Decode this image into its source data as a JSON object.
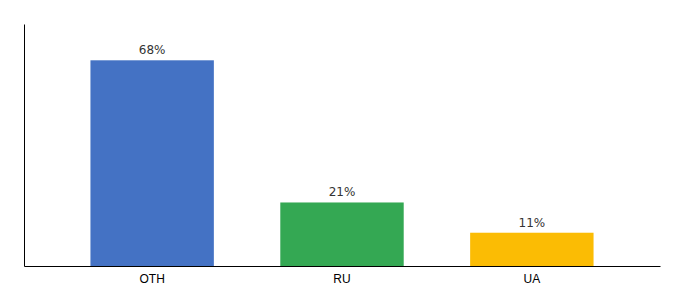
{
  "chart_data": {
    "type": "bar",
    "categories": [
      "OTH",
      "RU",
      "UA"
    ],
    "values": [
      68,
      21,
      11
    ],
    "value_labels": [
      "68%",
      "21%",
      "11%"
    ],
    "colors": [
      "#4472c4",
      "#34a853",
      "#fbbc04"
    ],
    "ylim": [
      0,
      80
    ],
    "data_labels": true,
    "tick_labels": "x",
    "grid": false
  }
}
